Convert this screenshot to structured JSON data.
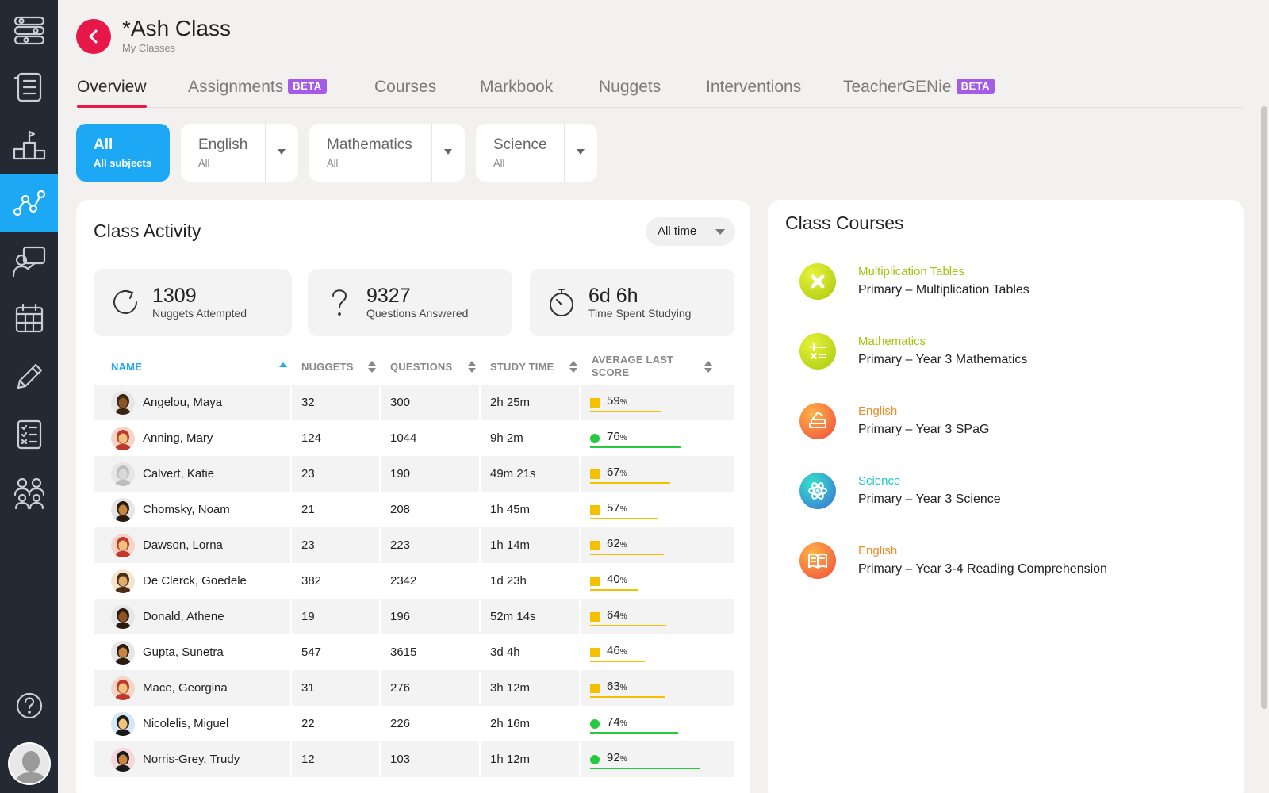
{
  "header": {
    "title": "*Ash Class",
    "breadcrumb": "My Classes"
  },
  "tabs": [
    {
      "label": "Overview",
      "badge": null
    },
    {
      "label": "Assignments",
      "badge": "BETA"
    },
    {
      "label": "Courses",
      "badge": null
    },
    {
      "label": "Markbook",
      "badge": null
    },
    {
      "label": "Nuggets",
      "badge": null
    },
    {
      "label": "Interventions",
      "badge": null
    },
    {
      "label": "TeacherGENie",
      "badge": "BETA"
    }
  ],
  "filters": {
    "all": {
      "title": "All",
      "sub": "All subjects"
    },
    "english": {
      "title": "English",
      "sub": "All"
    },
    "mathematics": {
      "title": "Mathematics",
      "sub": "All"
    },
    "science": {
      "title": "Science",
      "sub": "All"
    }
  },
  "activity": {
    "title": "Class Activity",
    "time_filter": "All time",
    "stats": {
      "nuggets": {
        "value": "1309",
        "label": "Nuggets Attempted"
      },
      "questions": {
        "value": "9327",
        "label": "Questions Answered"
      },
      "time": {
        "value": "6d 6h",
        "label": "Time Spent Studying"
      }
    },
    "columns": {
      "name": "NAME",
      "nuggets": "NUGGETS",
      "questions": "QUESTIONS",
      "study_time": "STUDY TIME",
      "avg_score_1": "AVERAGE LAST",
      "avg_score_2": "SCORE"
    },
    "pct_unit": "%",
    "students": [
      {
        "name": "Angelou, Maya",
        "nuggets": "32",
        "questions": "300",
        "study_time": "2h 25m",
        "score": 59
      },
      {
        "name": "Anning, Mary",
        "nuggets": "124",
        "questions": "1044",
        "study_time": "9h 2m",
        "score": 76
      },
      {
        "name": "Calvert, Katie",
        "nuggets": "23",
        "questions": "190",
        "study_time": "49m 21s",
        "score": 67
      },
      {
        "name": "Chomsky, Noam",
        "nuggets": "21",
        "questions": "208",
        "study_time": "1h 45m",
        "score": 57
      },
      {
        "name": "Dawson, Lorna",
        "nuggets": "23",
        "questions": "223",
        "study_time": "1h 14m",
        "score": 62
      },
      {
        "name": "De Clerck, Goedele",
        "nuggets": "382",
        "questions": "2342",
        "study_time": "1d 23h",
        "score": 40
      },
      {
        "name": "Donald, Athene",
        "nuggets": "19",
        "questions": "196",
        "study_time": "52m 14s",
        "score": 64
      },
      {
        "name": "Gupta, Sunetra",
        "nuggets": "547",
        "questions": "3615",
        "study_time": "3d 4h",
        "score": 46
      },
      {
        "name": "Mace, Georgina",
        "nuggets": "31",
        "questions": "276",
        "study_time": "3h 12m",
        "score": 63
      },
      {
        "name": "Nicolelis, Miguel",
        "nuggets": "22",
        "questions": "226",
        "study_time": "2h 16m",
        "score": 74
      },
      {
        "name": "Norris-Grey, Trudy",
        "nuggets": "12",
        "questions": "103",
        "study_time": "1h 12m",
        "score": 92
      }
    ]
  },
  "courses": {
    "title": "Class Courses",
    "items": [
      {
        "subject": "Multiplication Tables",
        "name": "Primary – Multiplication Tables",
        "icon": "multiply-icon",
        "color": "#b5cc12"
      },
      {
        "subject": "Mathematics",
        "name": "Primary – Year 3 Mathematics",
        "icon": "math-symbols-icon",
        "color": "#b5cc12"
      },
      {
        "subject": "English",
        "name": "Primary – Year 3 SPaG",
        "icon": "books-icon",
        "color": "#f08a24"
      },
      {
        "subject": "Science",
        "name": "Primary – Year 3 Science",
        "icon": "atom-icon",
        "color": "#1ec8c8"
      },
      {
        "subject": "English",
        "name": "Primary – Year 3-4 Reading Comprehension",
        "icon": "open-book-icon",
        "color": "#f08a24"
      }
    ]
  },
  "colors": {
    "accent": "#1da8f5",
    "brand": "#e8174a",
    "beta": "#a35be8",
    "good": "#27c93f",
    "ok": "#f5c000"
  }
}
